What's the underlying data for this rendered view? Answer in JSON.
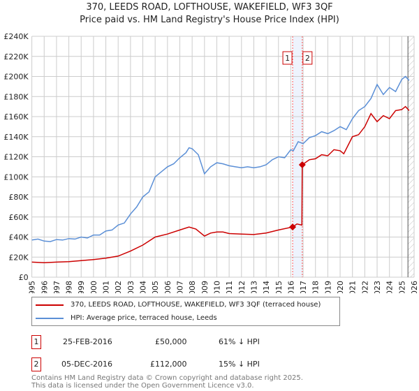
{
  "chart_data": {
    "type": "line",
    "title": "370, LEEDS ROAD, LOFTHOUSE, WAKEFIELD, WF3 3QF",
    "subtitle": "Price paid vs. HM Land Registry's House Price Index (HPI)",
    "xlim": [
      1995,
      2026
    ],
    "ylim": [
      0,
      240000
    ],
    "x_ticks": [
      "1995",
      "1996",
      "1997",
      "1998",
      "1999",
      "2000",
      "2001",
      "2002",
      "2003",
      "2004",
      "2005",
      "2006",
      "2007",
      "2008",
      "2009",
      "2010",
      "2011",
      "2012",
      "2013",
      "2014",
      "2015",
      "2016",
      "2017",
      "2018",
      "2019",
      "2020",
      "2021",
      "2022",
      "2023",
      "2024",
      "2025",
      "2026"
    ],
    "y_ticks": [
      {
        "v": 0,
        "label": "£0"
      },
      {
        "v": 20000,
        "label": "£20K"
      },
      {
        "v": 40000,
        "label": "£40K"
      },
      {
        "v": 60000,
        "label": "£60K"
      },
      {
        "v": 80000,
        "label": "£80K"
      },
      {
        "v": 100000,
        "label": "£100K"
      },
      {
        "v": 120000,
        "label": "£120K"
      },
      {
        "v": 140000,
        "label": "£140K"
      },
      {
        "v": 160000,
        "label": "£160K"
      },
      {
        "v": 180000,
        "label": "£180K"
      },
      {
        "v": 200000,
        "label": "£200K"
      },
      {
        "v": 220000,
        "label": "£220K"
      },
      {
        "v": 240000,
        "label": "£240K"
      }
    ],
    "grid": true,
    "series": [
      {
        "name": "370, LEEDS ROAD, LOFTHOUSE, WAKEFIELD, WF3 3QF (terraced house)",
        "color": "#cc0000",
        "x": [
          1995,
          1996,
          1997,
          1998,
          1999,
          2000,
          2001,
          2002,
          2003,
          2004,
          2005,
          2006,
          2007,
          2007.75,
          2008.3,
          2009,
          2009.5,
          2010,
          2010.5,
          2011,
          2012,
          2013,
          2014,
          2015,
          2016.15,
          2016.5,
          2016.9,
          2016.93,
          2017.5,
          2018,
          2018.5,
          2019,
          2019.5,
          2020,
          2020.3,
          2021,
          2021.5,
          2022,
          2022.5,
          2023,
          2023.5,
          2024,
          2024.5,
          2025,
          2025.3,
          2025.6
        ],
        "y": [
          15000,
          14500,
          15000,
          15500,
          16500,
          17500,
          19000,
          21000,
          26000,
          32000,
          40000,
          43000,
          47000,
          50000,
          48000,
          41000,
          44000,
          45000,
          45000,
          43500,
          43000,
          42500,
          44000,
          47000,
          50000,
          53000,
          52000,
          112000,
          117000,
          118000,
          122000,
          121000,
          127000,
          126000,
          123000,
          140000,
          142000,
          150000,
          163000,
          155000,
          161000,
          158000,
          166000,
          167000,
          170000,
          166000
        ]
      },
      {
        "name": "HPI: Average price, terraced house, Leeds",
        "color": "#5b8fd6",
        "x": [
          1995,
          1995.5,
          1996,
          1996.5,
          1997,
          1997.5,
          1998,
          1998.5,
          1999,
          1999.5,
          2000,
          2000.5,
          2001,
          2001.5,
          2002,
          2002.5,
          2003,
          2003.5,
          2004,
          2004.5,
          2005,
          2005.5,
          2006,
          2006.5,
          2007,
          2007.5,
          2007.75,
          2008,
          2008.5,
          2009,
          2009.5,
          2010,
          2010.5,
          2011,
          2011.5,
          2012,
          2012.5,
          2013,
          2013.5,
          2014,
          2014.5,
          2015,
          2015.5,
          2016,
          2016.2,
          2016.6,
          2017,
          2017.5,
          2018,
          2018.5,
          2019,
          2019.5,
          2020,
          2020.5,
          2021,
          2021.5,
          2022,
          2022.5,
          2023,
          2023.5,
          2024,
          2024.5,
          2025,
          2025.3,
          2025.6
        ],
        "y": [
          37000,
          38000,
          36000,
          35500,
          37500,
          37000,
          38500,
          38000,
          40000,
          39000,
          42000,
          42000,
          46000,
          47000,
          52000,
          54000,
          63000,
          70000,
          80000,
          85000,
          100000,
          105000,
          110000,
          113000,
          119000,
          124000,
          129000,
          128000,
          122000,
          103000,
          110000,
          114000,
          113000,
          111000,
          110000,
          109000,
          110000,
          109000,
          110000,
          112000,
          117000,
          120000,
          119000,
          127000,
          126000,
          135000,
          133000,
          139000,
          141000,
          145000,
          143000,
          146000,
          150000,
          147000,
          158000,
          166000,
          170000,
          178000,
          192000,
          182000,
          189000,
          185000,
          197000,
          200000,
          196000
        ]
      }
    ],
    "transactions": [
      {
        "id": "1",
        "x": 2016.15,
        "date": "25-FEB-2016",
        "price": 50000,
        "price_label": "£50,000",
        "hpi_label": "61% ↓ HPI"
      },
      {
        "id": "2",
        "x": 2016.93,
        "date": "05-DEC-2016",
        "price": 112000,
        "price_label": "£112,000",
        "hpi_label": "15% ↓ HPI"
      }
    ],
    "forecast_from": 2025.5,
    "legend_position": "bottom"
  },
  "footer": {
    "line1": "Contains HM Land Registry data © Crown copyright and database right 2025.",
    "line2": "This data is licensed under the Open Government Licence v3.0."
  }
}
